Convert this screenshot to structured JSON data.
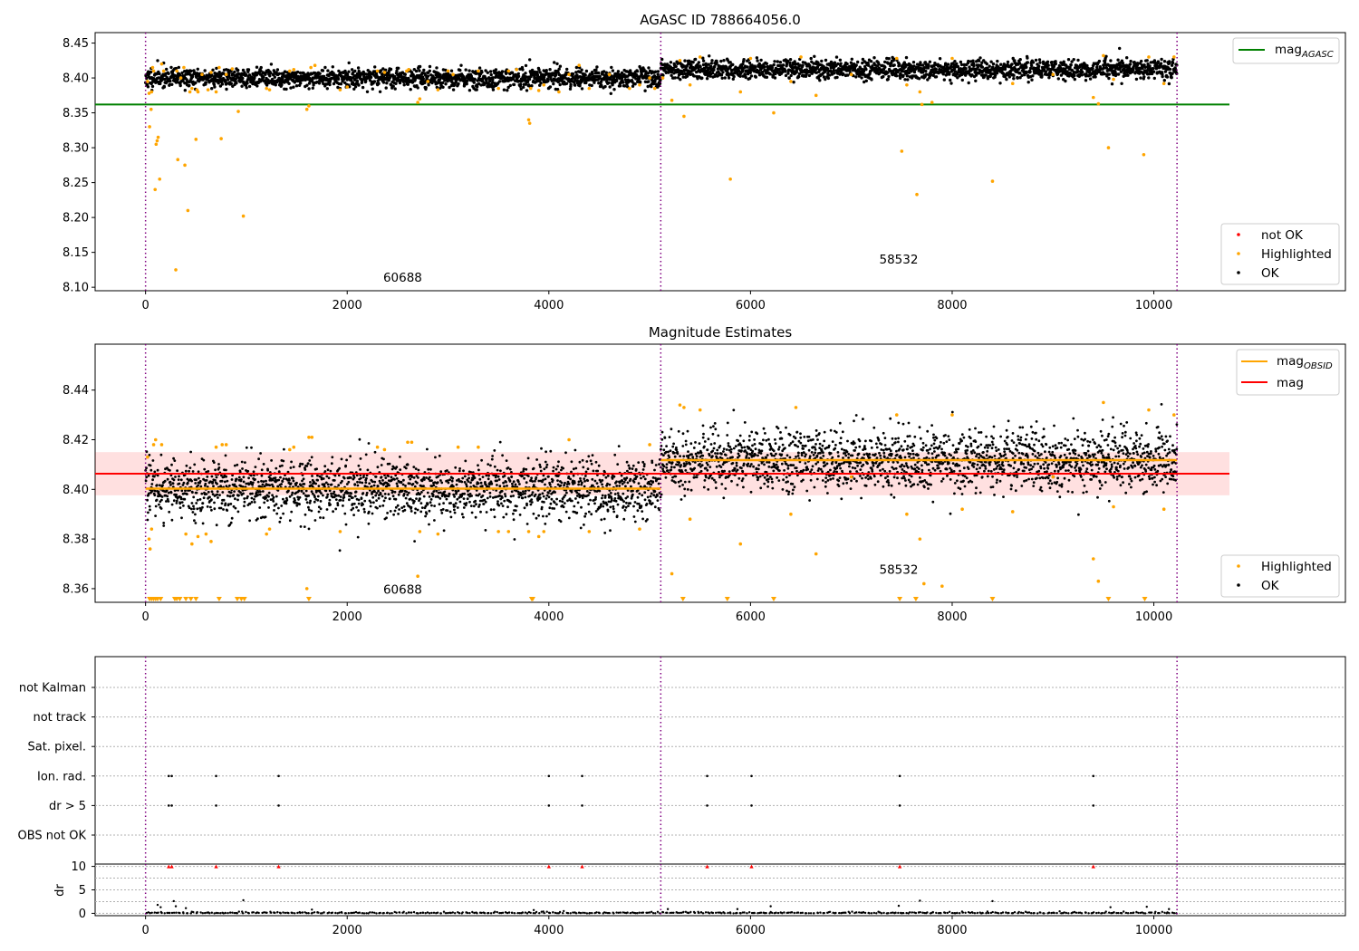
{
  "chart_data": [
    {
      "type": "scatter",
      "title": "AGASC ID 788664056.0",
      "xlim": [
        -500,
        11900
      ],
      "ylim": [
        8.095,
        8.465
      ],
      "x_ticks": [
        0,
        2000,
        4000,
        6000,
        8000,
        10000
      ],
      "y_ticks": [
        8.1,
        8.15,
        8.2,
        8.25,
        8.3,
        8.35,
        8.4,
        8.45
      ],
      "y_tick_labels": [
        "8.10",
        "8.15",
        "8.20",
        "8.25",
        "8.30",
        "8.35",
        "8.40",
        "8.45"
      ],
      "observation_boundaries": [
        0,
        5110,
        10230
      ],
      "observations": [
        {
          "obsid": "60688",
          "x_range": [
            0,
            5110
          ],
          "mean": 8.4,
          "ok_spread": 0.007,
          "label_pos": [
            2550,
            8.108
          ]
        },
        {
          "obsid": "58532",
          "x_range": [
            5110,
            10230
          ],
          "mean": 8.412,
          "ok_spread": 0.007,
          "label_pos": [
            7470,
            8.134
          ]
        }
      ],
      "lines": [
        {
          "name": "mag_AGASC",
          "label_main": "mag",
          "label_sub": "AGASC",
          "value": 8.362,
          "x_range": [
            -500,
            10750
          ],
          "color": "#008000"
        }
      ],
      "series": [
        {
          "name": "not OK",
          "color": "#ff0000",
          "values": []
        },
        {
          "name": "Highlighted",
          "color": "#ffa500",
          "points": [
            [
              20,
              8.395
            ],
            [
              35,
              8.378
            ],
            [
              40,
              8.33
            ],
            [
              55,
              8.355
            ],
            [
              60,
              8.38
            ],
            [
              70,
              8.415
            ],
            [
              80,
              8.41
            ],
            [
              95,
              8.24
            ],
            [
              105,
              8.305
            ],
            [
              115,
              8.31
            ],
            [
              125,
              8.315
            ],
            [
              140,
              8.255
            ],
            [
              160,
              8.42
            ],
            [
              180,
              8.41
            ],
            [
              300,
              8.125
            ],
            [
              310,
              8.41
            ],
            [
              320,
              8.283
            ],
            [
              350,
              8.4
            ],
            [
              380,
              8.415
            ],
            [
              390,
              8.275
            ],
            [
              420,
              8.21
            ],
            [
              440,
              8.38
            ],
            [
              460,
              8.385
            ],
            [
              500,
              8.312
            ],
            [
              510,
              8.383
            ],
            [
              520,
              8.38
            ],
            [
              560,
              8.405
            ],
            [
              620,
              8.383
            ],
            [
              650,
              8.408
            ],
            [
              700,
              8.38
            ],
            [
              730,
              8.415
            ],
            [
              750,
              8.313
            ],
            [
              800,
              8.405
            ],
            [
              860,
              8.413
            ],
            [
              920,
              8.352
            ],
            [
              970,
              8.202
            ],
            [
              1200,
              8.385
            ],
            [
              1230,
              8.383
            ],
            [
              1430,
              8.41
            ],
            [
              1470,
              8.412
            ],
            [
              1600,
              8.355
            ],
            [
              1620,
              8.36
            ],
            [
              1640,
              8.415
            ],
            [
              1680,
              8.418
            ],
            [
              1930,
              8.383
            ],
            [
              2000,
              8.387
            ],
            [
              2300,
              8.41
            ],
            [
              2370,
              8.408
            ],
            [
              2590,
              8.41
            ],
            [
              2610,
              8.412
            ],
            [
              2700,
              8.365
            ],
            [
              2720,
              8.37
            ],
            [
              2800,
              8.395
            ],
            [
              2900,
              8.383
            ],
            [
              3000,
              8.41
            ],
            [
              3050,
              8.405
            ],
            [
              3300,
              8.41
            ],
            [
              3500,
              8.385
            ],
            [
              3600,
              8.41
            ],
            [
              3680,
              8.412
            ],
            [
              3800,
              8.34
            ],
            [
              3810,
              8.335
            ],
            [
              3820,
              8.385
            ],
            [
              3900,
              8.382
            ],
            [
              3950,
              8.39
            ],
            [
              4100,
              8.38
            ],
            [
              4200,
              8.405
            ],
            [
              4300,
              8.418
            ],
            [
              4400,
              8.385
            ],
            [
              4600,
              8.405
            ],
            [
              4800,
              8.385
            ],
            [
              4900,
              8.39
            ],
            [
              5000,
              8.4
            ],
            [
              5050,
              8.385
            ],
            [
              5130,
              8.4
            ],
            [
              5220,
              8.368
            ],
            [
              5300,
              8.425
            ],
            [
              5340,
              8.345
            ],
            [
              5400,
              8.39
            ],
            [
              5500,
              8.43
            ],
            [
              5800,
              8.255
            ],
            [
              5900,
              8.38
            ],
            [
              6000,
              8.428
            ],
            [
              6230,
              8.35
            ],
            [
              6400,
              8.395
            ],
            [
              6500,
              8.43
            ],
            [
              6650,
              8.375
            ],
            [
              7000,
              8.405
            ],
            [
              7450,
              8.428
            ],
            [
              7500,
              8.295
            ],
            [
              7550,
              8.39
            ],
            [
              7650,
              8.233
            ],
            [
              7680,
              8.38
            ],
            [
              7700,
              8.362
            ],
            [
              7800,
              8.365
            ],
            [
              8000,
              8.428
            ],
            [
              8400,
              8.252
            ],
            [
              8600,
              8.392
            ],
            [
              9000,
              8.405
            ],
            [
              9400,
              8.372
            ],
            [
              9450,
              8.363
            ],
            [
              9500,
              8.432
            ],
            [
              9550,
              8.3
            ],
            [
              9600,
              8.398
            ],
            [
              9900,
              8.29
            ],
            [
              9950,
              8.43
            ],
            [
              10100,
              8.392
            ],
            [
              10200,
              8.43
            ]
          ]
        },
        {
          "name": "OK",
          "color": "#000000",
          "values": []
        }
      ],
      "legend_lines": {
        "position": "upper right",
        "entries": [
          "mag_AGASC"
        ]
      },
      "legend_points": {
        "position": "lower right",
        "entries": [
          "not OK",
          "Highlighted",
          "OK"
        ]
      },
      "grid": false
    },
    {
      "type": "scatter",
      "title": "Magnitude Estimates",
      "xlim": [
        -500,
        11900
      ],
      "ylim": [
        8.3545,
        8.4585
      ],
      "x_ticks": [
        0,
        2000,
        4000,
        6000,
        8000,
        10000
      ],
      "y_ticks": [
        8.36,
        8.38,
        8.4,
        8.42,
        8.44
      ],
      "y_tick_labels": [
        "8.36",
        "8.38",
        "8.40",
        "8.42",
        "8.44"
      ],
      "observation_boundaries": [
        0,
        5110,
        10230
      ],
      "observations": [
        {
          "obsid": "60688",
          "x_range": [
            0,
            5110
          ],
          "mag_obsid": 8.4003,
          "ok_spread": 0.0058,
          "label_pos": [
            2550,
            8.358
          ]
        },
        {
          "obsid": "58532",
          "x_range": [
            5110,
            10230
          ],
          "mag_obsid": 8.4118,
          "ok_spread": 0.0062,
          "label_pos": [
            7470,
            8.366
          ]
        }
      ],
      "lines": [
        {
          "name": "mag_OBSID",
          "label_main": "mag",
          "label_sub": "OBSID",
          "color": "#ffa500"
        },
        {
          "name": "mag",
          "label_main": "mag",
          "value": 8.4063,
          "x_range": [
            -500,
            10750
          ],
          "color": "#ff0000"
        }
      ],
      "band": {
        "center": 8.4063,
        "half_width": 0.0087,
        "x_range": [
          -500,
          10750
        ],
        "color": "rgba(255,0,0,0.12)"
      },
      "series": [
        {
          "name": "Highlighted",
          "color": "#ffa500",
          "points": [
            [
              20,
              8.413
            ],
            [
              35,
              8.38
            ],
            [
              45,
              8.376
            ],
            [
              60,
              8.384
            ],
            [
              80,
              8.418
            ],
            [
              100,
              8.42
            ],
            [
              160,
              8.418
            ],
            [
              400,
              8.382
            ],
            [
              460,
              8.378
            ],
            [
              520,
              8.381
            ],
            [
              600,
              8.382
            ],
            [
              650,
              8.379
            ],
            [
              700,
              8.417
            ],
            [
              760,
              8.418
            ],
            [
              800,
              8.418
            ],
            [
              1200,
              8.382
            ],
            [
              1230,
              8.384
            ],
            [
              1430,
              8.416
            ],
            [
              1470,
              8.417
            ],
            [
              1600,
              8.36
            ],
            [
              1620,
              8.421
            ],
            [
              1650,
              8.421
            ],
            [
              1930,
              8.383
            ],
            [
              2300,
              8.417
            ],
            [
              2370,
              8.416
            ],
            [
              2600,
              8.419
            ],
            [
              2640,
              8.419
            ],
            [
              2700,
              8.365
            ],
            [
              2720,
              8.383
            ],
            [
              2900,
              8.382
            ],
            [
              3100,
              8.417
            ],
            [
              3300,
              8.417
            ],
            [
              3500,
              8.383
            ],
            [
              3600,
              8.383
            ],
            [
              3800,
              8.383
            ],
            [
              3900,
              8.381
            ],
            [
              3950,
              8.383
            ],
            [
              4200,
              8.42
            ],
            [
              4400,
              8.383
            ],
            [
              4900,
              8.384
            ],
            [
              5000,
              8.418
            ],
            [
              5220,
              8.366
            ],
            [
              5300,
              8.434
            ],
            [
              5340,
              8.433
            ],
            [
              5400,
              8.388
            ],
            [
              5500,
              8.432
            ],
            [
              5900,
              8.378
            ],
            [
              6400,
              8.39
            ],
            [
              6450,
              8.433
            ],
            [
              6650,
              8.374
            ],
            [
              7000,
              8.405
            ],
            [
              7450,
              8.43
            ],
            [
              7550,
              8.39
            ],
            [
              7680,
              8.38
            ],
            [
              7720,
              8.362
            ],
            [
              7900,
              8.361
            ],
            [
              8000,
              8.43
            ],
            [
              8100,
              8.392
            ],
            [
              8600,
              8.391
            ],
            [
              9000,
              8.405
            ],
            [
              9400,
              8.372
            ],
            [
              9450,
              8.363
            ],
            [
              9500,
              8.435
            ],
            [
              9600,
              8.393
            ],
            [
              9950,
              8.432
            ],
            [
              10100,
              8.392
            ],
            [
              10200,
              8.43
            ]
          ]
        },
        {
          "name": "Highlighted (below range)",
          "color": "#ffa500",
          "x": [
            40,
            60,
            80,
            100,
            120,
            150,
            290,
            310,
            340,
            400,
            450,
            500,
            730,
            910,
            950,
            980,
            1620,
            3830,
            3840,
            5330,
            5770,
            6230,
            7480,
            7640,
            8400,
            9550,
            9910
          ]
        },
        {
          "name": "OK",
          "color": "#000000",
          "values": []
        }
      ],
      "legend_lines": {
        "position": "upper right",
        "entries": [
          "mag_OBSID",
          "mag"
        ]
      },
      "legend_points": {
        "position": "lower right",
        "entries": [
          "Highlighted",
          "OK"
        ]
      },
      "grid": false
    },
    {
      "type": "scatter",
      "title": "",
      "xlim": [
        -500,
        11900
      ],
      "flag_rows": [
        "not Kalman",
        "not track",
        "Sat. pixel.",
        "Ion. rad.",
        "dr > 5",
        "OBS not OK"
      ],
      "flag_points": {
        "Ion. rad.": [
          230,
          260,
          700,
          1320,
          4000,
          4330,
          5570,
          6010,
          7480,
          9400
        ],
        "dr > 5": [
          230,
          260,
          700,
          1320,
          4000,
          4330,
          5570,
          6010,
          7480,
          9400
        ]
      },
      "observation_boundaries": [
        0,
        5110,
        10230
      ],
      "dr_panel": {
        "ylabel": "dr",
        "ylim": [
          -0.5,
          10.5
        ],
        "y_ticks": [
          0,
          5,
          10
        ],
        "y_tick_labels": [
          "0",
          "5",
          "10"
        ],
        "gridlines": [
          0,
          2.5,
          5,
          7.5,
          10
        ],
        "clipped_at_10_x": [
          230,
          260,
          700,
          1320,
          4000,
          4330,
          5570,
          6010,
          7480,
          9400
        ],
        "outliers": [
          [
            120,
            1.8
          ],
          [
            150,
            1.3
          ],
          [
            280,
            2.6
          ],
          [
            300,
            1.5
          ],
          [
            400,
            1.1
          ],
          [
            970,
            2.8
          ],
          [
            1650,
            0.8
          ],
          [
            3850,
            0.7
          ],
          [
            5180,
            0.9
          ],
          [
            5870,
            0.9
          ],
          [
            6200,
            1.5
          ],
          [
            7470,
            1.6
          ],
          [
            7680,
            2.7
          ],
          [
            8400,
            2.6
          ],
          [
            9570,
            1.3
          ],
          [
            9930,
            1.4
          ],
          [
            10150,
            0.9
          ]
        ]
      },
      "x_tick_labels": [
        "0",
        "2000",
        "4000",
        "6000",
        "8000",
        "10000"
      ],
      "grid": true
    }
  ]
}
